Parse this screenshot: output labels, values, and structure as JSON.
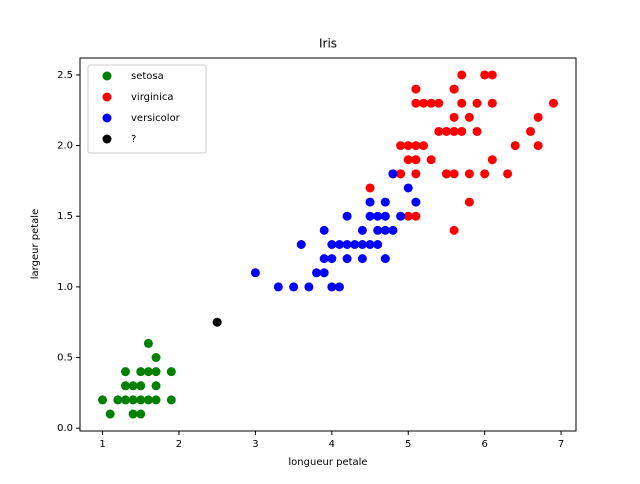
{
  "chart_data": {
    "type": "scatter",
    "title": "Iris",
    "x_label": "longueur petale",
    "y_label": "largeur petale",
    "xlim": [
      0.705,
      7.195
    ],
    "ylim": [
      -0.02,
      2.62
    ],
    "xticks": [
      1,
      2,
      3,
      4,
      5,
      6,
      7
    ],
    "yticks": [
      {
        "value": 0,
        "label": "0.0"
      },
      0.5,
      {
        "value": 1,
        "label": "1.0"
      },
      1.5,
      {
        "value": 2,
        "label": "2.0"
      },
      2.5
    ],
    "legend": "upper left",
    "series": [
      {
        "name": "setosa",
        "color": "#008000",
        "x": [
          1.0,
          1.1,
          1.2,
          1.3,
          1.3,
          1.3,
          1.4,
          1.4,
          1.4,
          1.5,
          1.5,
          1.5,
          1.5,
          1.6,
          1.6,
          1.6,
          1.7,
          1.7,
          1.7,
          1.7,
          1.9,
          1.9
        ],
        "y": [
          0.2,
          0.1,
          0.2,
          0.2,
          0.3,
          0.4,
          0.1,
          0.2,
          0.3,
          0.1,
          0.2,
          0.3,
          0.4,
          0.2,
          0.4,
          0.6,
          0.2,
          0.3,
          0.4,
          0.5,
          0.2,
          0.4
        ]
      },
      {
        "name": "virginica",
        "color": "#ff0000",
        "x": [
          6.0,
          5.1,
          5.9,
          5.6,
          5.8,
          6.6,
          4.5,
          6.3,
          5.8,
          6.1,
          5.1,
          5.3,
          5.5,
          5.0,
          5.1,
          5.3,
          5.5,
          6.7,
          6.9,
          5.0,
          5.7,
          4.9,
          6.7,
          4.9,
          5.7,
          6.0,
          4.8,
          4.9,
          5.6,
          5.8,
          6.1,
          6.4,
          5.6,
          5.1,
          5.6,
          6.1,
          5.6,
          5.5,
          4.8,
          5.4,
          5.6,
          5.1,
          5.1,
          5.9,
          5.7,
          5.2,
          5.0,
          5.2,
          5.4,
          5.1
        ],
        "y": [
          2.5,
          1.9,
          2.1,
          1.8,
          2.2,
          2.1,
          1.7,
          1.8,
          1.8,
          2.5,
          2.0,
          1.9,
          2.1,
          2.0,
          2.4,
          2.3,
          1.8,
          2.2,
          2.3,
          1.5,
          2.3,
          2.0,
          2.0,
          1.8,
          2.1,
          1.8,
          1.8,
          1.8,
          2.1,
          1.6,
          1.9,
          2.0,
          2.2,
          1.5,
          1.4,
          2.3,
          2.4,
          1.8,
          1.8,
          2.1,
          2.4,
          2.3,
          1.9,
          2.3,
          2.5,
          2.3,
          1.9,
          2.0,
          2.3,
          1.8
        ]
      },
      {
        "name": "versicolor",
        "color": "#0000ff",
        "x": [
          3.0,
          3.3,
          3.5,
          3.6,
          3.7,
          3.8,
          3.9,
          3.9,
          3.9,
          4.0,
          4.0,
          4.0,
          4.1,
          4.1,
          4.2,
          4.2,
          4.2,
          4.3,
          4.4,
          4.4,
          4.4,
          4.5,
          4.5,
          4.5,
          4.6,
          4.6,
          4.6,
          4.7,
          4.7,
          4.7,
          4.7,
          4.8,
          4.8,
          4.9,
          5.0,
          5.1
        ],
        "y": [
          1.1,
          1.0,
          1.0,
          1.3,
          1.0,
          1.1,
          1.1,
          1.2,
          1.4,
          1.0,
          1.2,
          1.3,
          1.0,
          1.3,
          1.2,
          1.3,
          1.5,
          1.3,
          1.2,
          1.3,
          1.4,
          1.3,
          1.5,
          1.6,
          1.3,
          1.4,
          1.5,
          1.2,
          1.4,
          1.5,
          1.6,
          1.4,
          1.8,
          1.5,
          1.7,
          1.6
        ]
      },
      {
        "name": "?",
        "color": "#000000",
        "x": [
          2.5
        ],
        "y": [
          0.75
        ]
      }
    ]
  }
}
